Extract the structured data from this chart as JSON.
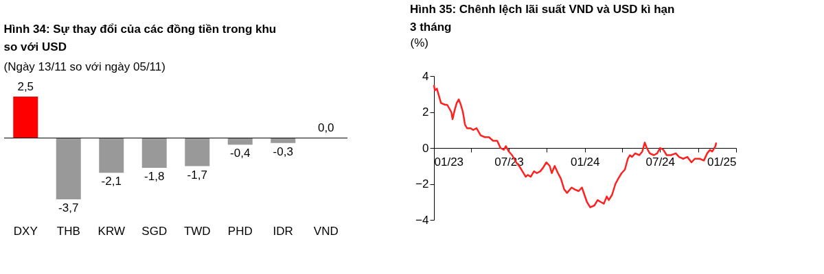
{
  "chart_data": [
    {
      "type": "bar",
      "title": "Hình 34: Sự thay đổi của các đồng tiền trong khu\nso với USD",
      "subtitle": "(Ngày 13/11 so với ngày 05/11)",
      "categories": [
        "DXY",
        "THB",
        "KRW",
        "SGD",
        "TWD",
        "PHD",
        "IDR",
        "VND"
      ],
      "values": [
        2.5,
        -3.7,
        -2.1,
        -1.8,
        -1.7,
        -0.4,
        -0.3,
        0.0
      ],
      "colors": [
        "#ff0000",
        "#999999",
        "#999999",
        "#999999",
        "#999999",
        "#999999",
        "#999999",
        "#999999"
      ],
      "value_labels": [
        "2,5",
        "-3,7",
        "-2,1",
        "-1,8",
        "-1,7",
        "-0,4",
        "-0,3",
        "0,0"
      ],
      "grid": false
    },
    {
      "type": "line",
      "title": "Hình 35: Chênh lệch lãi suất VND và USD kì hạn\n3 tháng",
      "ylabel": "(%)",
      "series": [
        {
          "color": "#ff2020",
          "line_style": "solid",
          "x": [
            "2023-01-01",
            "2023-01-03",
            "2023-01-08",
            "2023-01-13",
            "2023-01-18",
            "2023-01-28",
            "2023-02-02",
            "2023-02-07",
            "2023-02-12",
            "2023-02-15",
            "2023-02-20",
            "2023-02-25",
            "2023-03-02",
            "2023-03-07",
            "2023-03-12",
            "2023-03-17",
            "2023-03-22",
            "2023-03-30",
            "2023-04-06",
            "2023-04-14",
            "2023-04-19",
            "2023-04-24",
            "2023-05-04",
            "2023-05-14",
            "2023-05-24",
            "2023-06-03",
            "2023-06-11",
            "2023-06-19",
            "2023-06-24",
            "2023-07-01",
            "2023-07-09",
            "2023-07-14",
            "2023-07-19",
            "2023-07-26",
            "2023-08-03",
            "2023-08-11",
            "2023-08-16",
            "2023-08-23",
            "2023-08-31",
            "2023-09-07",
            "2023-09-15",
            "2023-09-22",
            "2023-09-30",
            "2023-10-08",
            "2023-10-13",
            "2023-10-20",
            "2023-10-28",
            "2023-11-04",
            "2023-11-12",
            "2023-11-19",
            "2023-11-30",
            "2023-12-07",
            "2023-12-17",
            "2023-12-25",
            "2024-01-06",
            "2024-01-14",
            "2024-01-24",
            "2024-02-01",
            "2024-02-08",
            "2024-02-16",
            "2024-02-23",
            "2024-02-28",
            "2024-03-07",
            "2024-03-15",
            "2024-03-22",
            "2024-03-30",
            "2024-04-07",
            "2024-04-14",
            "2024-04-19",
            "2024-04-24",
            "2024-05-02",
            "2024-05-12",
            "2024-05-19",
            "2024-05-25",
            "2024-05-30",
            "2024-06-06",
            "2024-06-16",
            "2024-06-24",
            "2024-07-01",
            "2024-07-09",
            "2024-07-17",
            "2024-07-27",
            "2024-08-08",
            "2024-08-16",
            "2024-08-26",
            "2024-09-05",
            "2024-09-15",
            "2024-09-23",
            "2024-10-05",
            "2024-10-15",
            "2024-10-23",
            "2024-10-30",
            "2024-11-04",
            "2024-11-12",
            "2024-11-14"
          ],
          "values": [
            3.5,
            3.2,
            3.3,
            2.9,
            2.5,
            2.4,
            2.4,
            2.2,
            2.0,
            1.6,
            2.1,
            2.5,
            2.7,
            2.4,
            2.0,
            1.3,
            1.1,
            1.1,
            1.0,
            1.1,
            0.9,
            0.7,
            0.6,
            0.6,
            0.4,
            0.4,
            0.0,
            -0.1,
            0.1,
            -0.2,
            -0.4,
            -0.6,
            -0.8,
            -1.0,
            -1.3,
            -1.6,
            -1.5,
            -1.6,
            -1.3,
            -1.4,
            -1.3,
            -1.1,
            -0.8,
            -1.0,
            -1.4,
            -1.0,
            -1.4,
            -1.7,
            -2.3,
            -2.5,
            -2.2,
            -2.3,
            -2.4,
            -2.2,
            -3.0,
            -3.3,
            -3.2,
            -2.9,
            -3.0,
            -3.1,
            -2.7,
            -2.9,
            -2.6,
            -2.0,
            -1.7,
            -1.4,
            -1.2,
            -0.6,
            -0.4,
            -0.5,
            -0.3,
            -0.4,
            -0.2,
            0.3,
            0.0,
            -0.3,
            -0.4,
            -0.3,
            0.0,
            -0.1,
            -0.4,
            -0.4,
            -0.3,
            -0.5,
            -0.6,
            -0.5,
            -0.8,
            -0.6,
            -0.6,
            -0.7,
            -0.3,
            -0.1,
            -0.2,
            0.1,
            0.3
          ]
        }
      ],
      "xlim": [
        "2023-01-01",
        "2025-01-01"
      ],
      "xticks": [
        {
          "value": "2023-01-01",
          "label": "01/23"
        },
        {
          "value": "2023-04-01",
          "label": null
        },
        {
          "value": "2023-07-01",
          "label": "07/23"
        },
        {
          "value": "2023-10-01",
          "label": null
        },
        {
          "value": "2024-01-01",
          "label": "01/24"
        },
        {
          "value": "2024-04-01",
          "label": null
        },
        {
          "value": "2024-07-01",
          "label": "07/24"
        },
        {
          "value": "2024-10-01",
          "label": null
        },
        {
          "value": "2025-01-01",
          "label": "01/25"
        }
      ],
      "ylim": [
        -4,
        4
      ],
      "yticks": [
        -4,
        -2,
        0,
        2,
        4
      ],
      "grid": false
    }
  ]
}
